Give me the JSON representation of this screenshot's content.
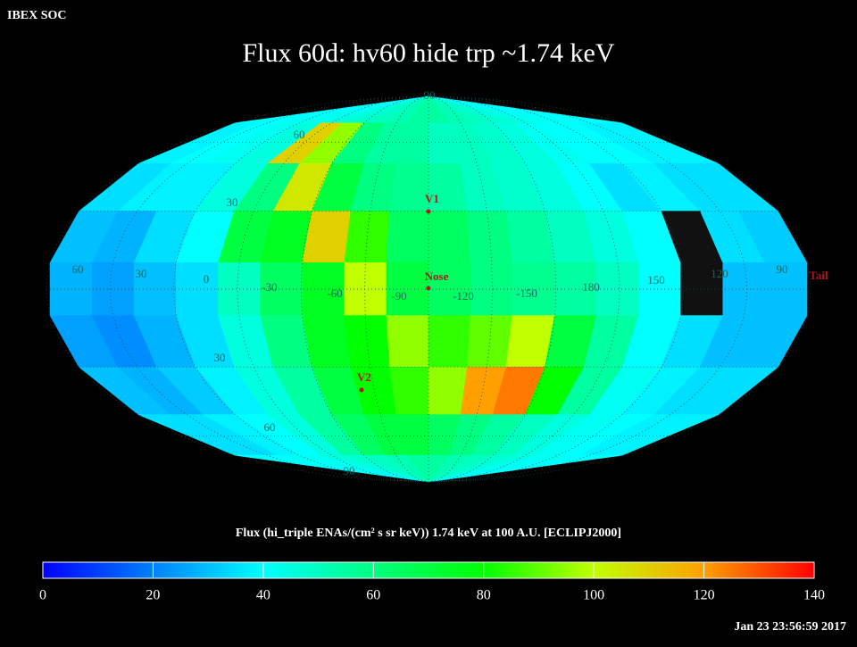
{
  "header": {
    "corner": "IBEX SOC",
    "title": "Flux   60d: hv60 hide trp ~1.74 keV",
    "timestamp": "Jan 23 23:56:59 2017"
  },
  "chart_data": {
    "type": "heatmap",
    "projection": "mollweide",
    "rows": [
      [
        40,
        40,
        42,
        42,
        45,
        48,
        50,
        52,
        55,
        55,
        52,
        50,
        48,
        45,
        42,
        42,
        40,
        40
      ],
      [
        38,
        40,
        42,
        45,
        110,
        95,
        60,
        55,
        55,
        50,
        50,
        48,
        45,
        42,
        40,
        40,
        38,
        38
      ],
      [
        35,
        38,
        38,
        45,
        60,
        105,
        70,
        60,
        58,
        55,
        50,
        48,
        45,
        40,
        35,
        38,
        35,
        35
      ],
      [
        30,
        28,
        35,
        40,
        70,
        75,
        110,
        85,
        65,
        65,
        60,
        55,
        50,
        45,
        40,
        null,
        35,
        32
      ],
      [
        28,
        25,
        30,
        35,
        50,
        65,
        75,
        100,
        70,
        65,
        60,
        58,
        55,
        50,
        40,
        null,
        30,
        30
      ],
      [
        25,
        22,
        28,
        35,
        45,
        60,
        75,
        80,
        95,
        85,
        90,
        100,
        70,
        55,
        40,
        35,
        30,
        30
      ],
      [
        30,
        28,
        32,
        38,
        45,
        55,
        70,
        80,
        85,
        95,
        120,
        125,
        80,
        55,
        42,
        38,
        35,
        35
      ],
      [
        35,
        35,
        38,
        40,
        45,
        55,
        65,
        70,
        70,
        65,
        60,
        55,
        50,
        45,
        42,
        40,
        38,
        38
      ],
      [
        40,
        40,
        42,
        42,
        45,
        48,
        50,
        52,
        55,
        55,
        52,
        50,
        48,
        45,
        42,
        42,
        40,
        40
      ]
    ],
    "colormap": [
      {
        "value": 0,
        "color": "#0000ff"
      },
      {
        "value": 20,
        "color": "#0080ff"
      },
      {
        "value": 40,
        "color": "#00ffff"
      },
      {
        "value": 60,
        "color": "#00ff80"
      },
      {
        "value": 80,
        "color": "#00ff00"
      },
      {
        "value": 100,
        "color": "#c0ff00"
      },
      {
        "value": 120,
        "color": "#ffa000"
      },
      {
        "value": 140,
        "color": "#ff0000"
      }
    ],
    "clim": [
      0,
      140
    ],
    "colorbar_ticks": [
      0,
      20,
      40,
      60,
      80,
      100,
      120,
      140
    ],
    "colorbar_label": "Flux (hi_triple ENAs/(cm² s sr keV))  1.74 keV at 100 A.U. [ECLIPJ2000]",
    "grid": true,
    "longitude_labels": [
      "60",
      "30",
      "0",
      "-30",
      "-60",
      "-90",
      "-120",
      "-150",
      "180",
      "150",
      "120",
      "90"
    ],
    "latitude_labels": [
      "90",
      "60",
      "30",
      "30",
      "60",
      "90"
    ],
    "markers": [
      "V1",
      "Nose",
      "V2",
      "Tail"
    ]
  }
}
